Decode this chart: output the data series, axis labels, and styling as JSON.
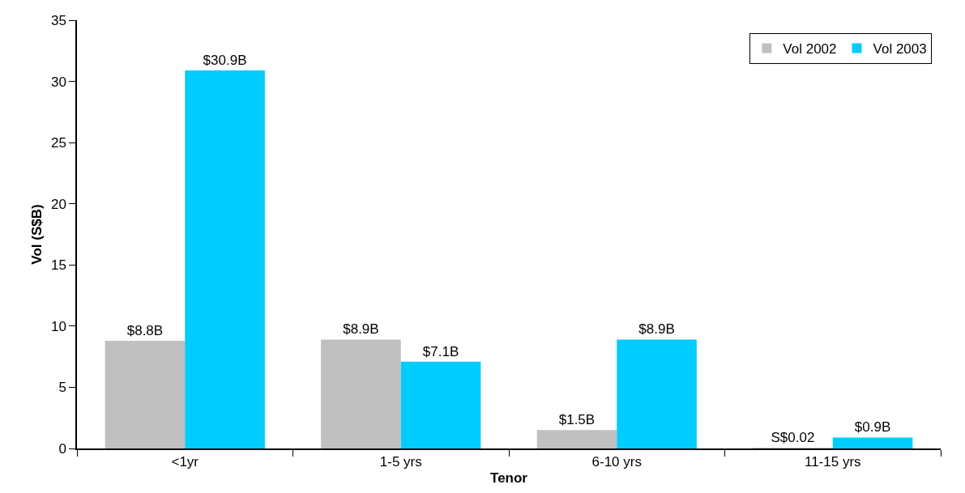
{
  "chart_data": {
    "type": "bar",
    "xlabel": "Tenor",
    "ylabel": "Vol (S$B)",
    "categories": [
      "<1yr",
      "1-5 yrs",
      "6-10 yrs",
      "11-15 yrs"
    ],
    "series": [
      {
        "name": "Vol 2002",
        "color": "#c0c0c0",
        "values": [
          8.8,
          8.9,
          1.5,
          0.02
        ],
        "value_labels": [
          "$8.8B",
          "$8.9B",
          "$1.5B",
          "S$0.02"
        ]
      },
      {
        "name": "Vol 2003",
        "color": "#00ccff",
        "values": [
          30.9,
          7.1,
          8.9,
          0.9
        ],
        "value_labels": [
          "$30.9B",
          "$7.1B",
          "$8.9B",
          "$0.9B"
        ]
      }
    ],
    "ylim": [
      0,
      35
    ],
    "yticks": [
      0,
      5,
      10,
      15,
      20,
      25,
      30,
      35
    ],
    "grid": false,
    "legend": "top right"
  }
}
